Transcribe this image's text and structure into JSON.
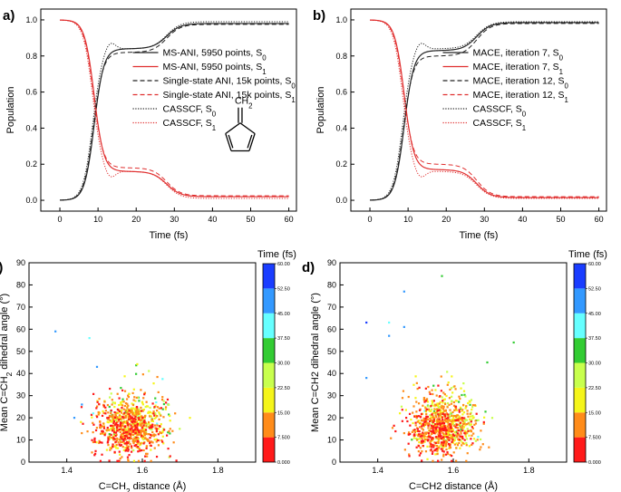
{
  "colors": {
    "s0": "#222222",
    "s1": "#e03030",
    "colormap": [
      "#ff1a1a",
      "#ff8c1a",
      "#f5f51a",
      "#c8ff4d",
      "#33cc33",
      "#66ffff",
      "#3399ff",
      "#1a3dff"
    ]
  },
  "chart_data": [
    {
      "id": "a",
      "panel_label": "a)",
      "type": "line",
      "xlabel": "Time (fs)",
      "ylabel": "Population",
      "xlim": [
        -5,
        62
      ],
      "ylim": [
        -0.06,
        1.06
      ],
      "xticks": [
        0,
        10,
        20,
        30,
        40,
        50,
        60
      ],
      "yticks": [
        0.0,
        0.2,
        0.4,
        0.6,
        0.8,
        1.0
      ],
      "xtick_labels": [
        "0",
        "10",
        "20",
        "30",
        "40",
        "50",
        "60"
      ],
      "ytick_labels": [
        "0.0",
        "0.2",
        "0.4",
        "0.6",
        "0.8",
        "1.0"
      ],
      "legend_position": "right",
      "molecule": {
        "label": "CH",
        "subscript": "2"
      },
      "series": [
        {
          "name": "MS-ANI, 5950 points, ",
          "sub": "0",
          "state": "S0",
          "style": "solid",
          "plateau1": 0.84,
          "plateau2": 0.98,
          "t_cross": 9.0,
          "spike": 0.0
        },
        {
          "name": "MS-ANI, 5950 points, ",
          "sub": "1",
          "state": "S1",
          "style": "solid",
          "plateau1": 0.84,
          "plateau2": 0.98,
          "t_cross": 9.0,
          "spike": 0.0
        },
        {
          "name": "Single-state ANI, 15k points, ",
          "sub": "0",
          "state": "S0",
          "style": "dashed",
          "plateau1": 0.82,
          "plateau2": 0.975,
          "t_cross": 8.8,
          "spike": 0.0
        },
        {
          "name": "Single-state ANI, 15k points, ",
          "sub": "1",
          "state": "S1",
          "style": "dashed",
          "plateau1": 0.82,
          "plateau2": 0.975,
          "t_cross": 8.8,
          "spike": 0.0
        },
        {
          "name": "CASSCF, ",
          "sub": "0",
          "state": "S0",
          "style": "dotted",
          "plateau1": 0.84,
          "plateau2": 0.99,
          "t_cross": 8.6,
          "spike": 0.05
        },
        {
          "name": "CASSCF, ",
          "sub": "1",
          "state": "S1",
          "style": "dotted",
          "plateau1": 0.84,
          "plateau2": 0.99,
          "t_cross": 8.6,
          "spike": 0.05
        }
      ]
    },
    {
      "id": "b",
      "panel_label": "b)",
      "type": "line",
      "xlabel": "Time (fs)",
      "ylabel": "Population",
      "xlim": [
        -5,
        62
      ],
      "ylim": [
        -0.06,
        1.06
      ],
      "xticks": [
        0,
        10,
        20,
        30,
        40,
        50,
        60
      ],
      "yticks": [
        0.0,
        0.2,
        0.4,
        0.6,
        0.8,
        1.0
      ],
      "xtick_labels": [
        "0",
        "10",
        "20",
        "30",
        "40",
        "50",
        "60"
      ],
      "ytick_labels": [
        "0.0",
        "0.2",
        "0.4",
        "0.6",
        "0.8",
        "1.0"
      ],
      "legend_position": "right",
      "series": [
        {
          "name": "MACE, iteration 7, ",
          "sub": "0",
          "state": "S0",
          "style": "solid",
          "plateau1": 0.83,
          "plateau2": 0.985,
          "t_cross": 9.0,
          "spike": 0.0
        },
        {
          "name": "MACE, iteration 7, ",
          "sub": "1",
          "state": "S1",
          "style": "solid",
          "plateau1": 0.83,
          "plateau2": 0.985,
          "t_cross": 9.0,
          "spike": 0.0
        },
        {
          "name": "MACE, iteration 12, ",
          "sub": "0",
          "state": "S0",
          "style": "dashed",
          "plateau1": 0.8,
          "plateau2": 0.98,
          "t_cross": 8.8,
          "spike": 0.0
        },
        {
          "name": "MACE, iteration 12, ",
          "sub": "1",
          "state": "S1",
          "style": "dashed",
          "plateau1": 0.8,
          "plateau2": 0.98,
          "t_cross": 8.8,
          "spike": 0.0
        },
        {
          "name": "CASSCF, ",
          "sub": "0",
          "state": "S0",
          "style": "dotted",
          "plateau1": 0.84,
          "plateau2": 0.99,
          "t_cross": 8.6,
          "spike": 0.05
        },
        {
          "name": "CASSCF, ",
          "sub": "1",
          "state": "S1",
          "style": "dotted",
          "plateau1": 0.84,
          "plateau2": 0.99,
          "t_cross": 8.6,
          "spike": 0.05
        }
      ]
    },
    {
      "id": "c",
      "panel_label": "c)",
      "type": "scatter",
      "xlabel_main": "C=CH",
      "xlabel_sub": "2",
      "xlabel_tail": " distance (Å)",
      "ylabel_main": "Mean C=CH",
      "ylabel_sub": "2",
      "ylabel_tail": " dihedral angle (°)",
      "xlim": [
        1.3,
        1.9
      ],
      "ylim": [
        0,
        90
      ],
      "xticks": [
        1.4,
        1.6,
        1.8
      ],
      "yticks": [
        0,
        10,
        20,
        30,
        40,
        50,
        60,
        70,
        80,
        90
      ],
      "xtick_labels": [
        "1.4",
        "1.6",
        "1.8"
      ],
      "ytick_labels": [
        "0",
        "10",
        "20",
        "30",
        "40",
        "50",
        "60",
        "70",
        "80",
        "90"
      ],
      "n_points": 900,
      "seed": 7,
      "outliers": [
        [
          1.37,
          59,
          52
        ],
        [
          1.48,
          43,
          50
        ],
        [
          1.44,
          26,
          45
        ],
        [
          1.46,
          56,
          40
        ],
        [
          1.47,
          22,
          42
        ],
        [
          1.42,
          20,
          46
        ]
      ],
      "colorbar": {
        "title": "Time (fs)",
        "levels": [
          0,
          7.5,
          15,
          22.5,
          30,
          37.5,
          45,
          52.5,
          60
        ],
        "labels": [
          "0.000",
          "7.500",
          "15.00",
          "22.50",
          "30.00",
          "37.50",
          "45.00",
          "52.50",
          "60.00"
        ]
      }
    },
    {
      "id": "d",
      "panel_label": "d)",
      "type": "scatter",
      "xlabel_main": "C=CH2 distance (Å)",
      "xlabel_sub": "",
      "xlabel_tail": "",
      "ylabel_main": "Mean C=CH2 dihedral angle (°)",
      "ylabel_sub": "",
      "ylabel_tail": "",
      "xlim": [
        1.3,
        1.9
      ],
      "ylim": [
        0,
        90
      ],
      "xticks": [
        1.4,
        1.6,
        1.8
      ],
      "yticks": [
        0,
        10,
        20,
        30,
        40,
        50,
        60,
        70,
        80,
        90
      ],
      "xtick_labels": [
        "1.4",
        "1.6",
        "1.8"
      ],
      "ytick_labels": [
        "0",
        "10",
        "20",
        "30",
        "40",
        "50",
        "60",
        "70",
        "80",
        "90"
      ],
      "n_points": 900,
      "seed": 19,
      "outliers": [
        [
          1.37,
          63,
          55
        ],
        [
          1.37,
          38,
          52
        ],
        [
          1.47,
          77,
          50
        ],
        [
          1.43,
          57,
          48
        ],
        [
          1.47,
          61,
          46
        ],
        [
          1.69,
          45,
          33
        ],
        [
          1.57,
          84,
          35
        ],
        [
          1.76,
          54,
          33
        ],
        [
          1.43,
          63,
          40
        ]
      ],
      "colorbar": {
        "title": "Time (fs)",
        "levels": [
          0,
          7.5,
          15,
          22.5,
          30,
          37.5,
          45,
          52.5,
          60
        ],
        "labels": [
          "0.000",
          "7.500",
          "15.00",
          "22.50",
          "30.00",
          "37.50",
          "45.00",
          "52.50",
          "60.00"
        ]
      }
    }
  ]
}
